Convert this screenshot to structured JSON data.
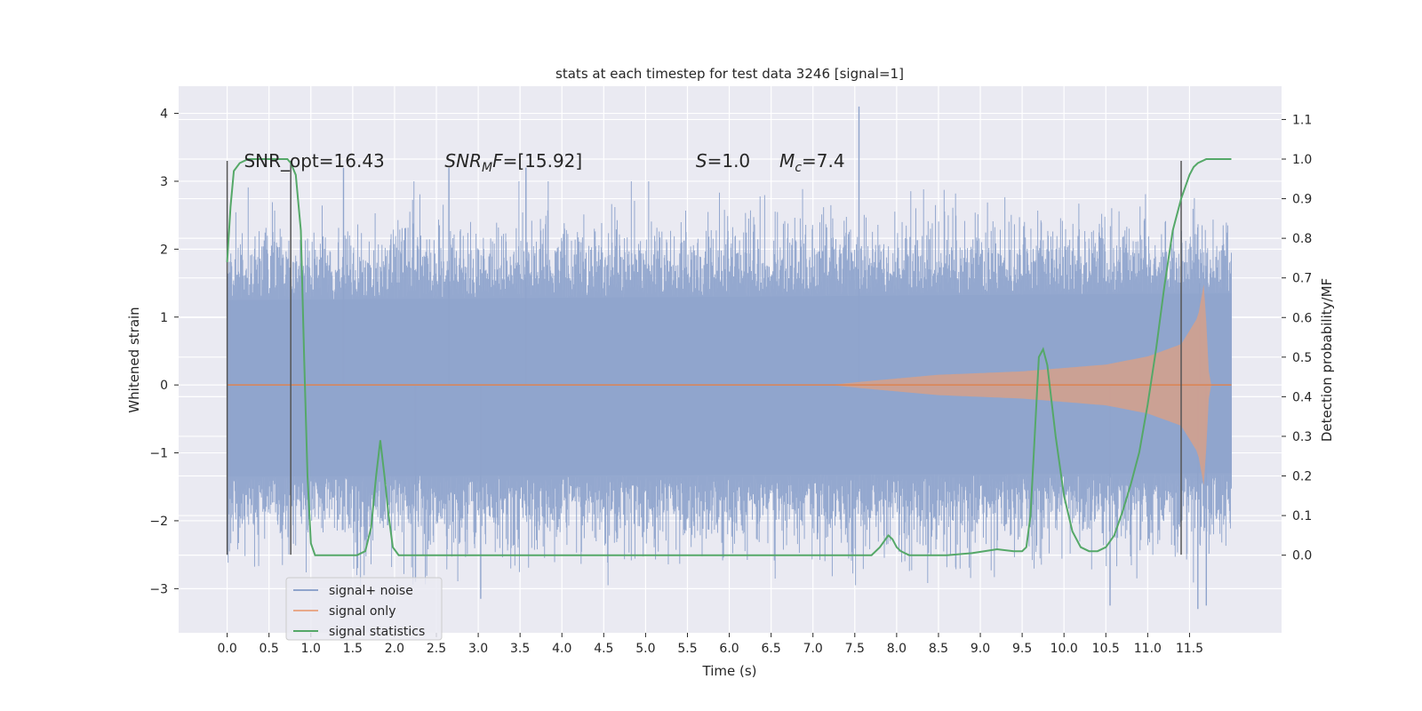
{
  "chart_data": {
    "type": "line",
    "title": "stats at each timestep for test data 3246 [signal=1]",
    "xlabel": "Time (s)",
    "ylabel": "Whitened strain",
    "y2label": "Detection probability/MF",
    "xlim": [
      -0.58,
      12.6
    ],
    "ylim": [
      -3.65,
      4.4
    ],
    "y2lim": [
      -0.196,
      1.184
    ],
    "x_ticks": [
      0.0,
      0.5,
      1.0,
      1.5,
      2.0,
      2.5,
      3.0,
      3.5,
      4.0,
      4.5,
      5.0,
      5.5,
      6.0,
      6.5,
      7.0,
      7.5,
      8.0,
      8.5,
      9.0,
      9.5,
      10.0,
      10.5,
      11.0,
      11.5
    ],
    "x_tick_labels": [
      "0.0",
      "0.5",
      "1.0",
      "1.5",
      "2.0",
      "2.5",
      "3.0",
      "3.5",
      "4.0",
      "4.5",
      "5.0",
      "5.5",
      "6.0",
      "6.5",
      "7.0",
      "7.5",
      "8.0",
      "8.5",
      "9.0",
      "9.5",
      "10.0",
      "10.5",
      "11.0",
      "11.5"
    ],
    "y_ticks": [
      -3,
      -2,
      -1,
      0,
      1,
      2,
      3,
      4
    ],
    "y_tick_labels": [
      "−3",
      "−2",
      "−1",
      "0",
      "1",
      "2",
      "3",
      "4"
    ],
    "y2_ticks": [
      0.0,
      0.1,
      0.2,
      0.3,
      0.4,
      0.5,
      0.6,
      0.7,
      0.8,
      0.9,
      1.0,
      1.1
    ],
    "y2_tick_labels": [
      "0.0",
      "0.1",
      "0.2",
      "0.3",
      "0.4",
      "0.5",
      "0.6",
      "0.7",
      "0.8",
      "0.9",
      "1.0",
      "1.1"
    ],
    "grid": true,
    "legend_position": "lower-left",
    "annotations": [
      {
        "text": "SNR_opt=16.43",
        "x": 0.2,
        "y": 3.3
      },
      {
        "text": "SNR_MF=[15.92]",
        "x": 2.6,
        "y": 3.3
      },
      {
        "text": "S=1.0",
        "x": 5.6,
        "y": 3.3
      },
      {
        "text": "M_c=7.4",
        "x": 6.6,
        "y": 3.3
      }
    ],
    "vertical_markers": [
      {
        "x": 0.0,
        "y_range": [
          -2.5,
          3.3
        ]
      },
      {
        "x": 0.76,
        "y_range": [
          -2.5,
          3.3
        ]
      },
      {
        "x": 11.4,
        "y_range": [
          -2.5,
          3.3
        ]
      }
    ],
    "series": [
      {
        "name": "signal+ noise",
        "axis": "left",
        "color": "#8fa4cc",
        "kind": "noise",
        "x_range": [
          0.0,
          12.0
        ],
        "envelope_high": [
          [
            0.0,
            1.25
          ],
          [
            12.0,
            1.35
          ]
        ],
        "envelope_low": [
          [
            0.0,
            -1.35
          ],
          [
            12.0,
            -1.3
          ]
        ],
        "notable_peaks": [
          [
            1.39,
            3.2
          ],
          [
            2.65,
            3.2
          ],
          [
            3.57,
            3.2
          ],
          [
            7.55,
            4.1
          ],
          [
            11.62,
            1.5
          ]
        ],
        "notable_troughs": [
          [
            2.25,
            -2.9
          ],
          [
            3.03,
            -3.15
          ],
          [
            10.55,
            -3.25
          ],
          [
            11.6,
            -3.3
          ],
          [
            11.7,
            -3.25
          ]
        ]
      },
      {
        "name": "signal only",
        "axis": "left",
        "color": "#dd8452",
        "kind": "chirp",
        "x_range": [
          0.0,
          12.0
        ],
        "envelope": [
          [
            0.0,
            0.0
          ],
          [
            7.2,
            0.0
          ],
          [
            7.6,
            0.05
          ],
          [
            8.5,
            0.15
          ],
          [
            9.5,
            0.2
          ],
          [
            10.5,
            0.3
          ],
          [
            11.0,
            0.42
          ],
          [
            11.4,
            0.6
          ],
          [
            11.6,
            1.0
          ],
          [
            11.68,
            1.55
          ],
          [
            11.72,
            0.3
          ],
          [
            11.75,
            0.0
          ],
          [
            12.0,
            0.0
          ]
        ]
      },
      {
        "name": "signal statistics",
        "axis": "right",
        "color": "#55a868",
        "kind": "line",
        "x": [
          0.0,
          0.04,
          0.08,
          0.15,
          0.25,
          0.4,
          0.6,
          0.72,
          0.76,
          0.82,
          0.88,
          0.92,
          0.96,
          1.0,
          1.05,
          1.2,
          1.4,
          1.55,
          1.65,
          1.72,
          1.78,
          1.83,
          1.88,
          1.93,
          1.98,
          2.05,
          2.2,
          2.6,
          3.0,
          3.2,
          3.5,
          4.0,
          5.0,
          6.0,
          6.3,
          6.5,
          6.8,
          7.0,
          7.5,
          7.7,
          7.8,
          7.9,
          7.95,
          8.0,
          8.05,
          8.15,
          8.3,
          8.6,
          8.9,
          9.2,
          9.4,
          9.5,
          9.55,
          9.6,
          9.65,
          9.7,
          9.75,
          9.8,
          9.9,
          10.0,
          10.1,
          10.2,
          10.3,
          10.4,
          10.5,
          10.6,
          10.7,
          10.8,
          10.9,
          11.0,
          11.1,
          11.2,
          11.3,
          11.4,
          11.5,
          11.55,
          11.6,
          11.7,
          11.8,
          11.9,
          12.0
        ],
        "y": [
          0.74,
          0.88,
          0.97,
          0.99,
          1.0,
          1.0,
          1.0,
          1.0,
          0.99,
          0.96,
          0.82,
          0.5,
          0.2,
          0.03,
          0.0,
          0.0,
          0.0,
          0.0,
          0.01,
          0.07,
          0.2,
          0.29,
          0.2,
          0.1,
          0.02,
          0.0,
          0.0,
          0.0,
          0.0,
          0.0,
          0.0,
          0.0,
          0.0,
          0.0,
          0.0,
          0.0,
          0.0,
          0.0,
          0.0,
          0.0,
          0.02,
          0.05,
          0.04,
          0.02,
          0.01,
          0.0,
          0.0,
          0.0,
          0.005,
          0.015,
          0.01,
          0.01,
          0.02,
          0.1,
          0.3,
          0.5,
          0.52,
          0.48,
          0.3,
          0.15,
          0.06,
          0.02,
          0.01,
          0.01,
          0.02,
          0.05,
          0.11,
          0.18,
          0.26,
          0.38,
          0.52,
          0.68,
          0.82,
          0.9,
          0.96,
          0.98,
          0.99,
          1.0,
          1.0,
          1.0,
          1.0
        ]
      }
    ]
  }
}
